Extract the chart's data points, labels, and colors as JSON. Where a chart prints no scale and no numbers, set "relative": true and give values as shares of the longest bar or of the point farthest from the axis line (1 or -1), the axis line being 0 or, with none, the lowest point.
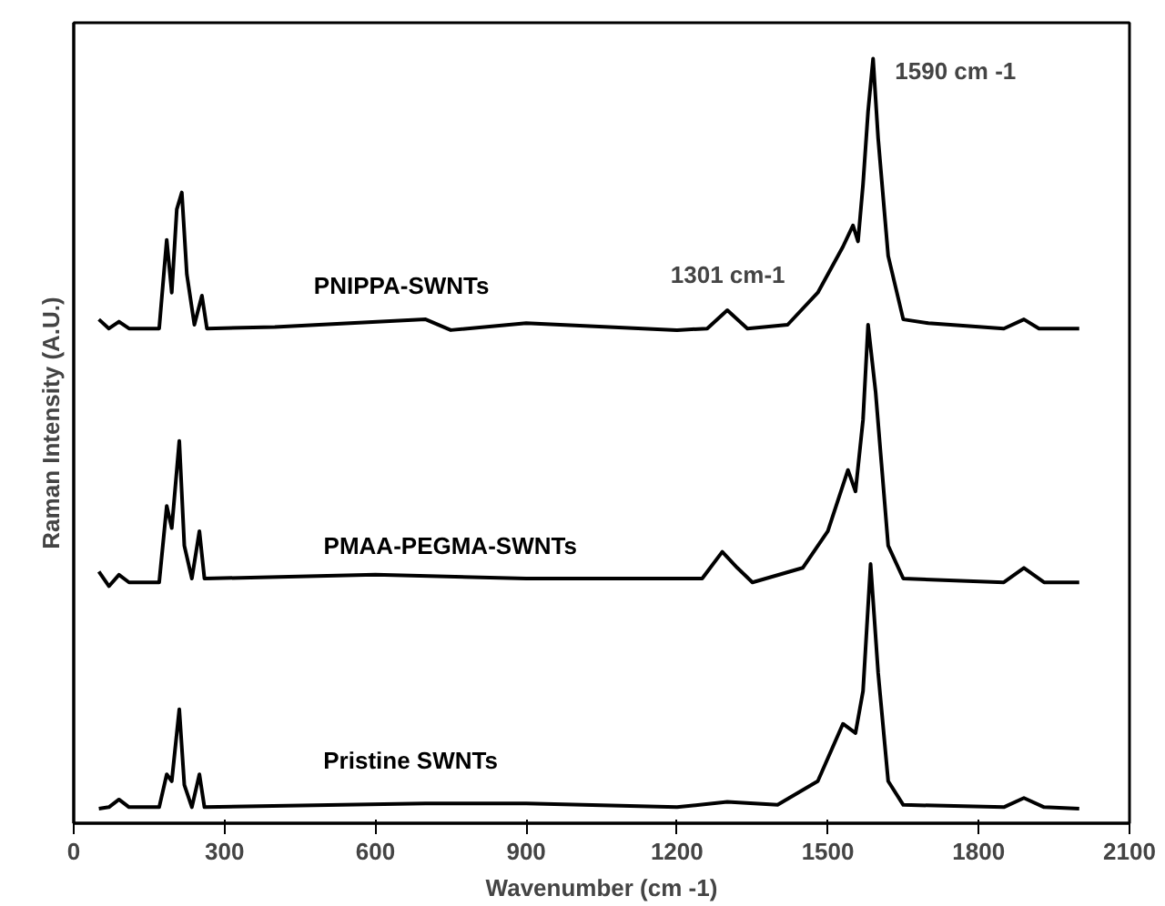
{
  "chart_data": {
    "type": "line",
    "relative": true,
    "xlabel": "Wavenumber (cm -1)",
    "ylabel": "Raman Intensity (A.U.)",
    "xlim": [
      0,
      2100
    ],
    "xticks": [
      0,
      300,
      600,
      900,
      1200,
      1500,
      1800,
      2100
    ],
    "tick_labels": "x",
    "grid": false,
    "marker": "none",
    "line_style": "solid",
    "series": [
      {
        "name": "PNIPPA-SWNTs",
        "color": "#000000",
        "x": [
          50,
          70,
          90,
          110,
          170,
          185,
          195,
          205,
          215,
          225,
          240,
          255,
          265,
          400,
          700,
          750,
          900,
          1200,
          1260,
          1300,
          1340,
          1420,
          1480,
          1530,
          1550,
          1560,
          1570,
          1580,
          1590,
          1600,
          1620,
          1650,
          1700,
          1850,
          1890,
          1920,
          2000
        ],
        "values": [
          0.659,
          0.647,
          0.656,
          0.647,
          0.647,
          0.763,
          0.694,
          0.803,
          0.825,
          0.718,
          0.652,
          0.69,
          0.647,
          0.649,
          0.659,
          0.645,
          0.654,
          0.645,
          0.647,
          0.671,
          0.647,
          0.652,
          0.694,
          0.754,
          0.782,
          0.761,
          0.836,
          0.931,
          1.0,
          0.896,
          0.742,
          0.659,
          0.654,
          0.647,
          0.659,
          0.647,
          0.647
        ]
      },
      {
        "name": "PMAA-PEGMA-SWNTs",
        "color": "#000000",
        "x": [
          50,
          70,
          90,
          110,
          170,
          185,
          195,
          210,
          220,
          235,
          250,
          260,
          600,
          900,
          1250,
          1290,
          1320,
          1350,
          1450,
          1500,
          1540,
          1555,
          1570,
          1580,
          1595,
          1620,
          1650,
          1850,
          1890,
          1930,
          2000
        ],
        "values": [
          0.329,
          0.31,
          0.325,
          0.315,
          0.315,
          0.415,
          0.386,
          0.5,
          0.363,
          0.32,
          0.382,
          0.32,
          0.325,
          0.32,
          0.32,
          0.355,
          0.334,
          0.315,
          0.334,
          0.382,
          0.462,
          0.434,
          0.528,
          0.652,
          0.564,
          0.363,
          0.32,
          0.315,
          0.334,
          0.315,
          0.315
        ]
      },
      {
        "name": "Pristine SWNTs",
        "color": "#000000",
        "x": [
          50,
          70,
          90,
          110,
          170,
          185,
          195,
          210,
          220,
          235,
          250,
          260,
          700,
          900,
          1200,
          1300,
          1400,
          1480,
          1530,
          1555,
          1570,
          1585,
          1600,
          1620,
          1650,
          1850,
          1890,
          1930,
          2000
        ],
        "values": [
          0.019,
          0.021,
          0.031,
          0.021,
          0.021,
          0.064,
          0.055,
          0.149,
          0.05,
          0.021,
          0.064,
          0.021,
          0.026,
          0.026,
          0.021,
          0.028,
          0.024,
          0.055,
          0.13,
          0.118,
          0.173,
          0.339,
          0.197,
          0.055,
          0.024,
          0.021,
          0.033,
          0.021,
          0.019
        ]
      }
    ],
    "annotations": [
      {
        "text": "1590 cm -1",
        "x": 1590,
        "y": 1.0
      },
      {
        "text": "1301 cm-1",
        "x": 1301,
        "y": 0.671
      }
    ]
  }
}
